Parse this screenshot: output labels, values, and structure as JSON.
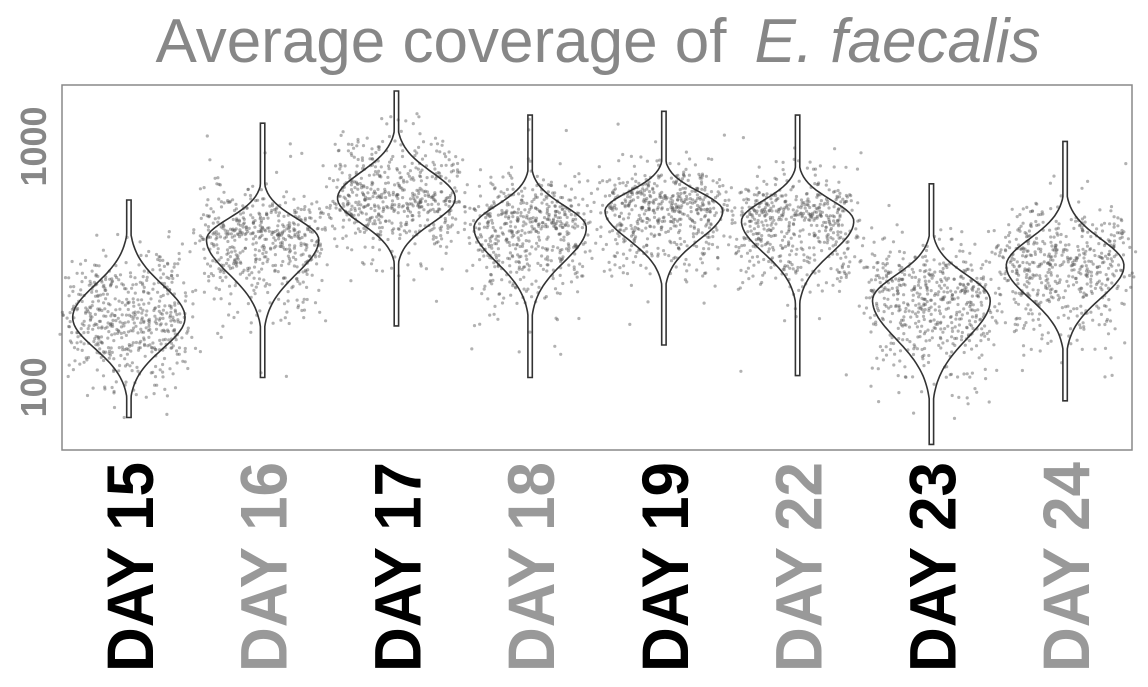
{
  "chart_data": {
    "type": "violin",
    "title": "Average coverage of",
    "title_italic": "E. faecalis",
    "y_scale": "log",
    "ylim": [
      55,
      1800
    ],
    "y_ticks": [
      100,
      1000
    ],
    "y_tick_labels": [
      "100",
      "1000"
    ],
    "grid": false,
    "categories": [
      "DAY 15",
      "DAY 16",
      "DAY 17",
      "DAY 18",
      "DAY 19",
      "DAY 22",
      "DAY 23",
      "DAY 24"
    ],
    "category_colors": [
      "#000000",
      "#999999",
      "#000000",
      "#999999",
      "#000000",
      "#999999",
      "#000000",
      "#999999"
    ],
    "series": [
      {
        "category": "DAY 15",
        "min": 75,
        "max": 600,
        "median": 195,
        "lower_q": 160,
        "upper_q": 240,
        "mode": 195,
        "max_density_width": 0.42
      },
      {
        "category": "DAY 16",
        "min": 110,
        "max": 1250,
        "median": 400,
        "lower_q": 330,
        "upper_q": 470,
        "mode": 410,
        "max_density_width": 0.42
      },
      {
        "category": "DAY 17",
        "min": 180,
        "max": 1700,
        "median": 620,
        "lower_q": 520,
        "upper_q": 720,
        "mode": 610,
        "max_density_width": 0.44
      },
      {
        "category": "DAY 18",
        "min": 110,
        "max": 1350,
        "median": 450,
        "lower_q": 370,
        "upper_q": 530,
        "mode": 460,
        "max_density_width": 0.42
      },
      {
        "category": "DAY 19",
        "min": 150,
        "max": 1400,
        "median": 530,
        "lower_q": 450,
        "upper_q": 610,
        "mode": 540,
        "max_density_width": 0.44
      },
      {
        "category": "DAY 22",
        "min": 112,
        "max": 1350,
        "median": 480,
        "lower_q": 400,
        "upper_q": 560,
        "mode": 490,
        "max_density_width": 0.42
      },
      {
        "category": "DAY 23",
        "min": 58,
        "max": 700,
        "median": 225,
        "lower_q": 180,
        "upper_q": 270,
        "mode": 230,
        "max_density_width": 0.44
      },
      {
        "category": "DAY 24",
        "min": 88,
        "max": 1050,
        "median": 320,
        "lower_q": 260,
        "upper_q": 380,
        "mode": 320,
        "max_density_width": 0.44
      }
    ]
  },
  "colors": {
    "title": "#878787",
    "axis_text": "#878787",
    "frame": "#888888",
    "violin_outline": "#333333",
    "points": "#555555"
  }
}
